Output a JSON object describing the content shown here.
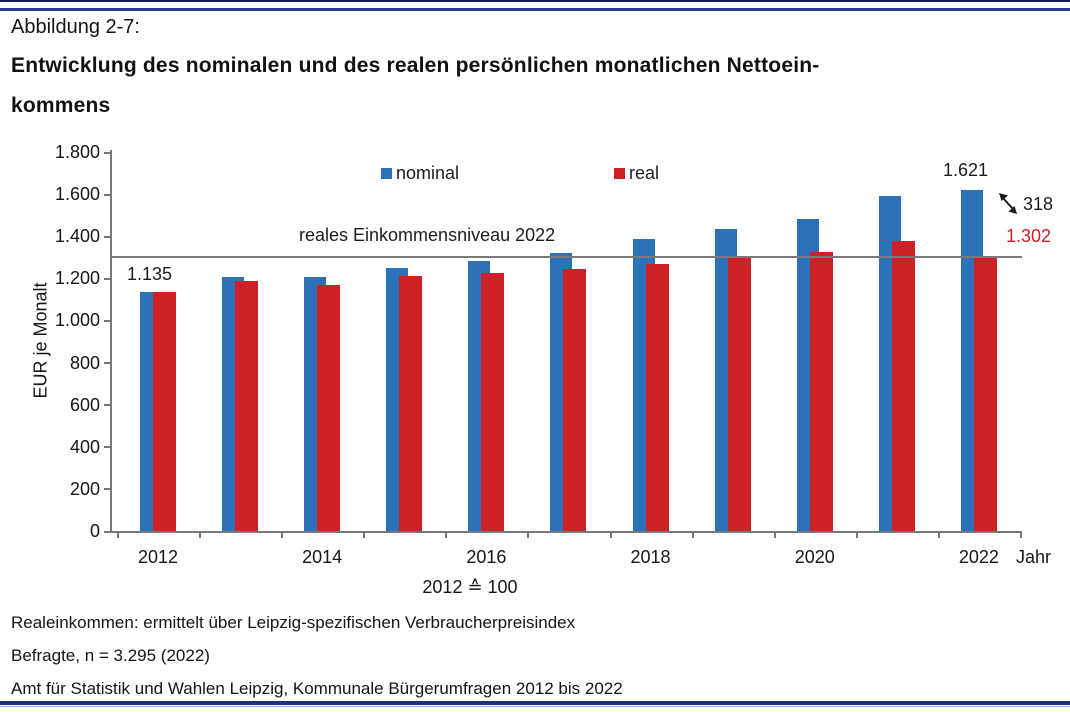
{
  "page": {
    "caption": "Abbildung 2-7:",
    "title_lines": [
      "Entwicklung des nominalen und des realen persönlichen monatlichen Nettoein-",
      "kommens"
    ],
    "footnotes": [
      "Realeinkommen: ermittelt über Leipzig-spezifischen Verbraucherpreisindex",
      "Befragte, n = 3.295 (2022)",
      "Amt für Statistik und Wahlen Leipzig, Kommunale Bürgerumfragen 2012 bis 2022"
    ],
    "rule_color_dark": "#101C4F",
    "rule_color_blue": "#2B3A97",
    "rule_color_light": "#8FA7DC"
  },
  "chart_data": {
    "type": "bar",
    "title": "",
    "categories": [
      2012,
      2013,
      2014,
      2015,
      2016,
      2017,
      2018,
      2019,
      2020,
      2021,
      2022
    ],
    "series": [
      {
        "name": "nominal",
        "color": "#2B72B8",
        "values": [
          1135,
          1205,
          1205,
          1250,
          1280,
          1320,
          1385,
          1435,
          1480,
          1590,
          1621
        ]
      },
      {
        "name": "real",
        "color": "#CE2127",
        "values": [
          1135,
          1185,
          1170,
          1210,
          1225,
          1245,
          1270,
          1295,
          1325,
          1375,
          1302
        ]
      }
    ],
    "ylabel": "EUR je Monalt",
    "xlabel": "Jahr",
    "x_note": "2012 ≙ 100",
    "ylim": [
      0,
      1800
    ],
    "ytick_step": 200,
    "ytick_labels": [
      "1.800",
      "1.600",
      "1.400",
      "1.200",
      "1.000",
      "800",
      "600",
      "400",
      "200",
      "0"
    ],
    "xtick_labels": [
      "2012",
      "2014",
      "2016",
      "2018",
      "2020",
      "2022"
    ],
    "grid": false,
    "legend_position": "top",
    "legend": [
      "nominal",
      "real"
    ],
    "reference_line": {
      "value": 1302,
      "label": "reales Einkommensniveau 2022",
      "color": "#7a7a7a"
    },
    "annotations": {
      "first_nominal": "1.135",
      "last_nominal": "1.621",
      "difference": "318",
      "last_real": "1.302",
      "last_real_color": "#CE2127"
    }
  }
}
